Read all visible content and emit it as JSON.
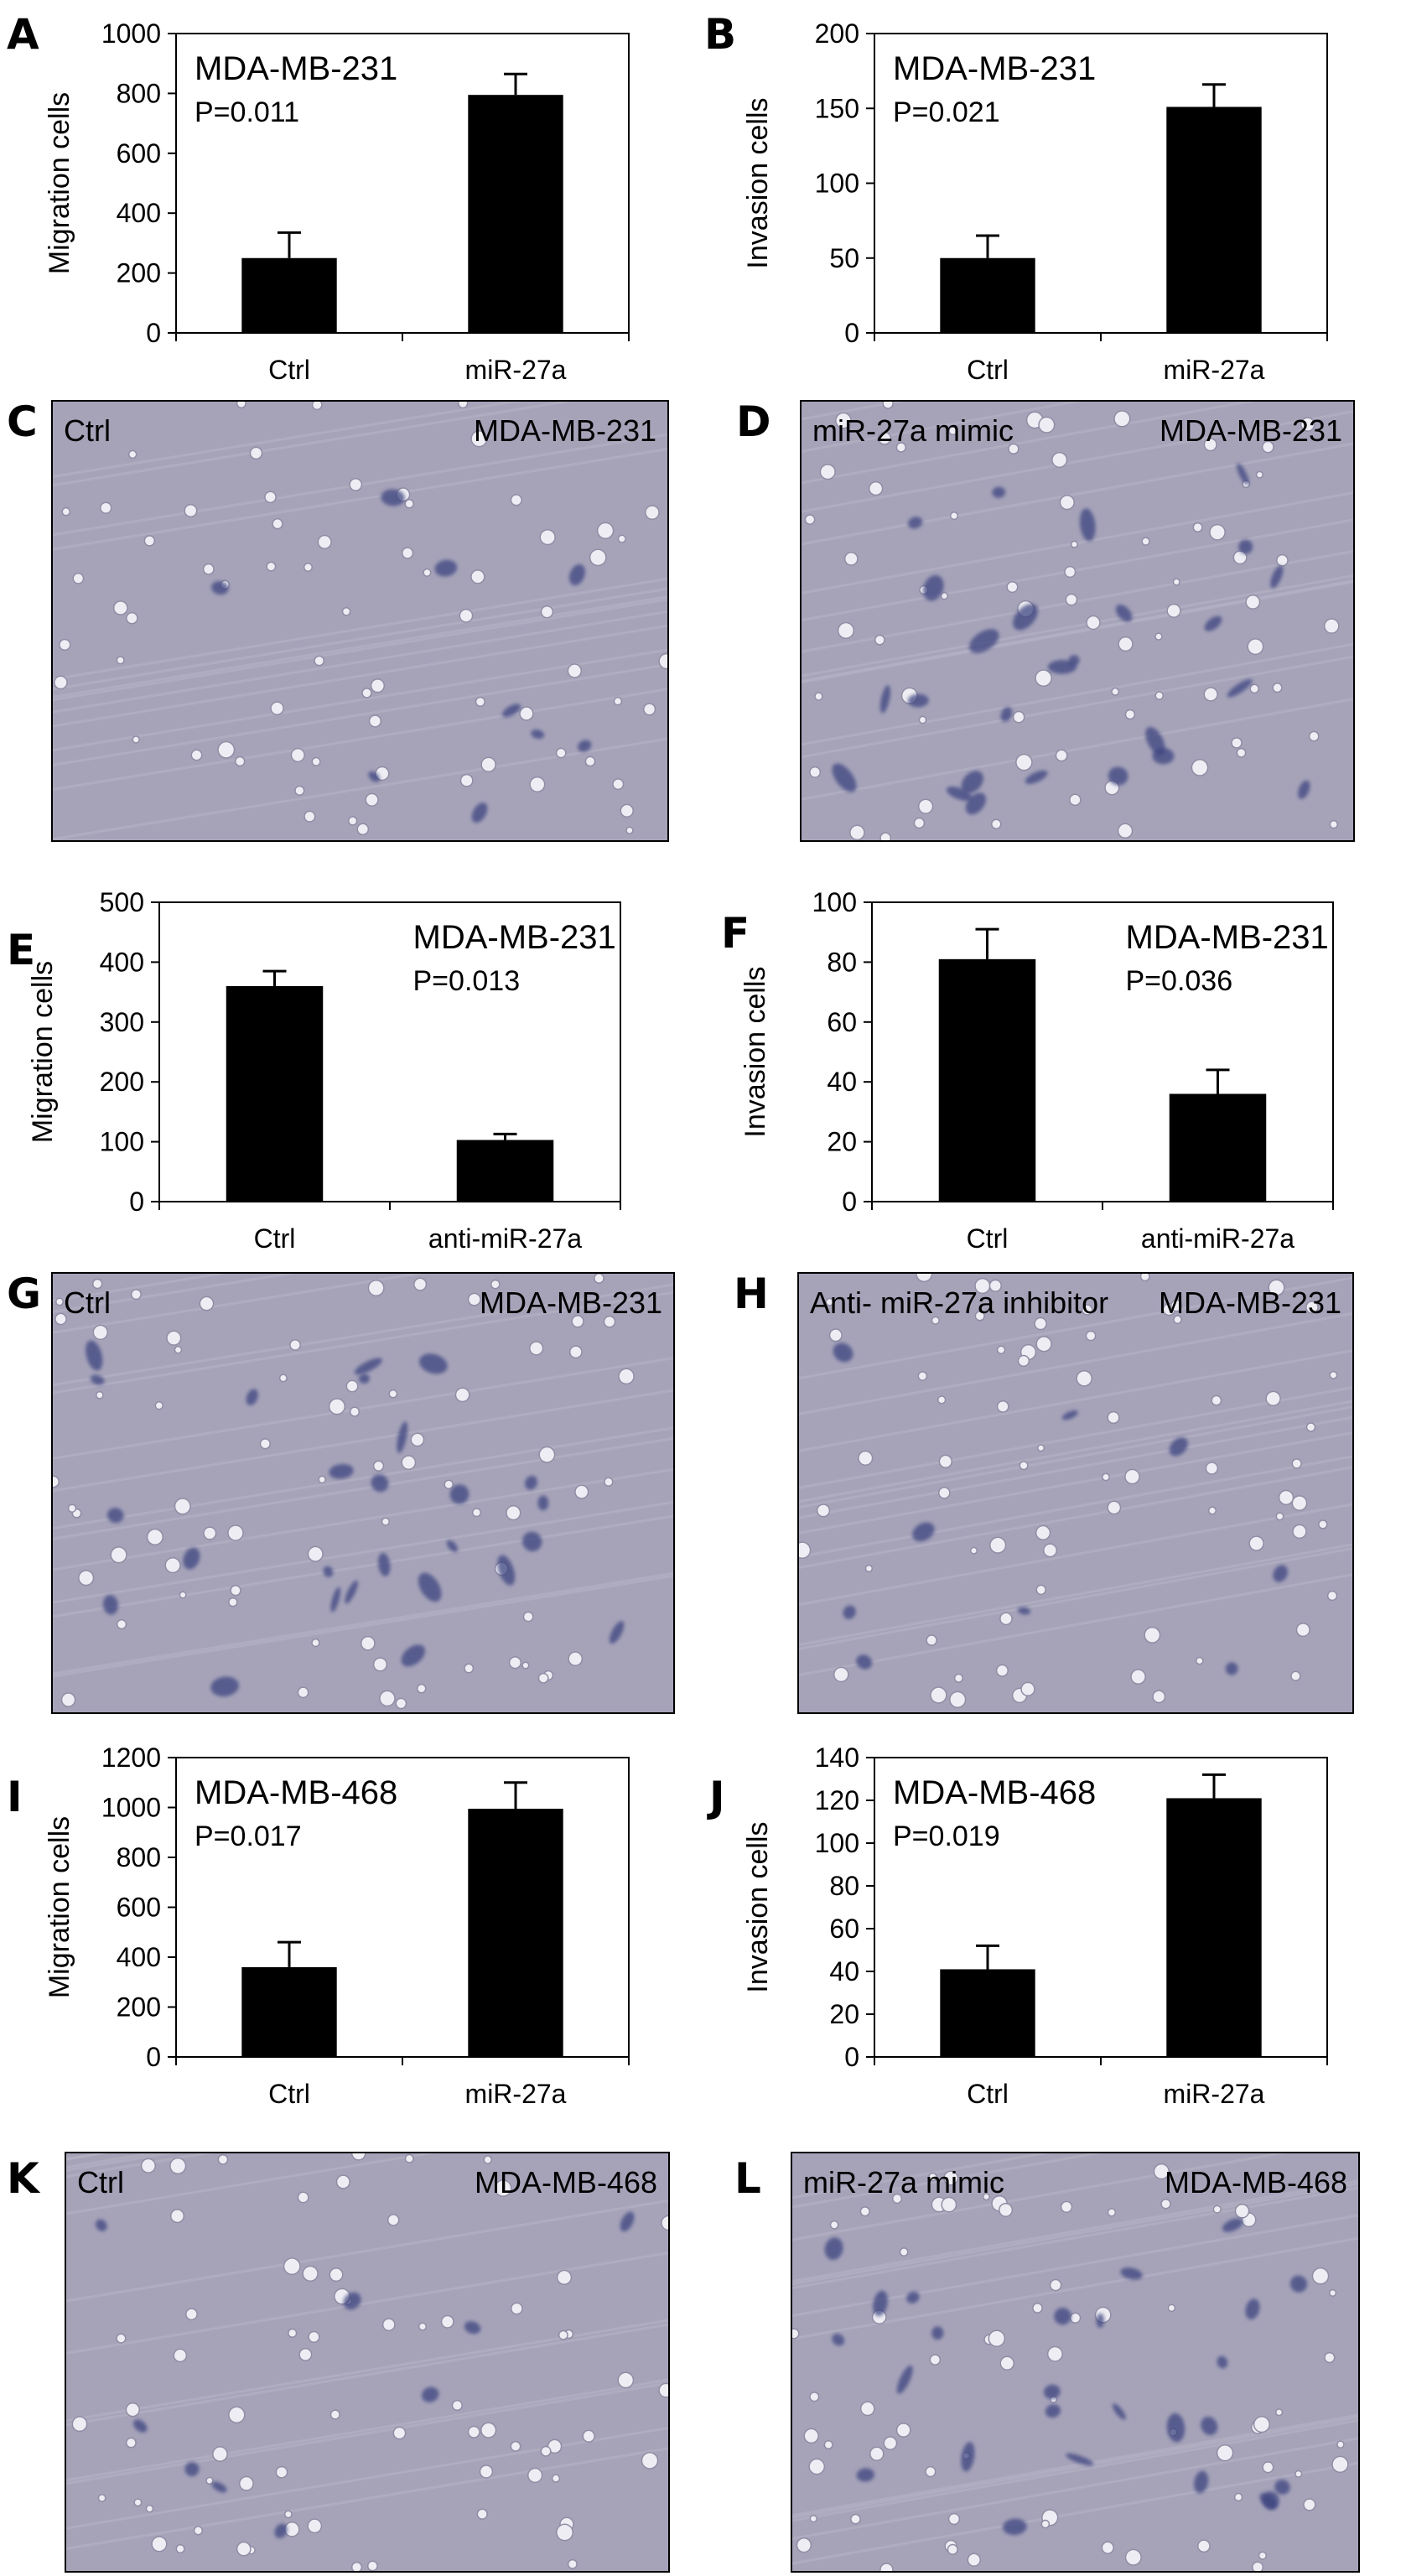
{
  "panels": {
    "A": "A",
    "B": "B",
    "C": "C",
    "D": "D",
    "E": "E",
    "F": "F",
    "G": "G",
    "H": "H",
    "I": "I",
    "J": "J",
    "K": "K",
    "L": "L"
  },
  "chart_data": [
    {
      "panel": "A",
      "type": "bar",
      "categories": [
        "Ctrl",
        "miR-27a"
      ],
      "values": [
        250,
        795
      ],
      "errors": [
        85,
        70
      ],
      "ylabel": "Migration  cells",
      "ylim": [
        0,
        1000
      ],
      "yticks": [
        "0",
        "200",
        "400",
        "600",
        "800",
        "1000"
      ],
      "annotation": [
        "MDA-MB-231",
        "P=0.011"
      ],
      "annotation_position": "top-left"
    },
    {
      "panel": "B",
      "type": "bar",
      "categories": [
        "Ctrl",
        "miR-27a"
      ],
      "values": [
        50,
        151
      ],
      "errors": [
        15,
        15
      ],
      "ylabel": "Invasion cells",
      "ylim": [
        0,
        200
      ],
      "yticks": [
        "0",
        "50",
        "100",
        "150",
        "200"
      ],
      "annotation": [
        "MDA-MB-231",
        "P=0.021"
      ],
      "annotation_position": "top-left"
    },
    {
      "panel": "E",
      "type": "bar",
      "categories": [
        "Ctrl",
        "anti-miR-27a"
      ],
      "values": [
        360,
        103
      ],
      "errors": [
        25,
        10
      ],
      "ylabel": "Migration  cells",
      "ylim": [
        0,
        500
      ],
      "yticks": [
        "0",
        "100",
        "200",
        "300",
        "400",
        "500"
      ],
      "annotation": [
        "MDA-MB-231",
        "P=0.013"
      ],
      "annotation_position": "top-right"
    },
    {
      "panel": "F",
      "type": "bar",
      "categories": [
        "Ctrl",
        "anti-miR-27a"
      ],
      "values": [
        81,
        36
      ],
      "errors": [
        10,
        8
      ],
      "ylabel": "Invasion cells",
      "ylim": [
        0,
        100
      ],
      "yticks": [
        "0",
        "20",
        "40",
        "60",
        "80",
        "100"
      ],
      "annotation": [
        "MDA-MB-231",
        "P=0.036"
      ],
      "annotation_position": "top-right"
    },
    {
      "panel": "I",
      "type": "bar",
      "categories": [
        "Ctrl",
        "miR-27a"
      ],
      "values": [
        360,
        995
      ],
      "errors": [
        100,
        105
      ],
      "ylabel": "Migration  cells",
      "ylim": [
        0,
        1200
      ],
      "yticks": [
        "0",
        "200",
        "400",
        "600",
        "800",
        "1000",
        "1200"
      ],
      "annotation": [
        "MDA-MB-468",
        "P=0.017"
      ],
      "annotation_position": "top-left"
    },
    {
      "panel": "J",
      "type": "bar",
      "categories": [
        "Ctrl",
        "miR-27a"
      ],
      "values": [
        41,
        121
      ],
      "errors": [
        11,
        11
      ],
      "ylabel": "Invasion cells",
      "ylim": [
        0,
        140
      ],
      "yticks": [
        "0",
        "20",
        "40",
        "60",
        "80",
        "100",
        "120",
        "140"
      ],
      "annotation": [
        "MDA-MB-468",
        "P=0.019"
      ],
      "annotation_position": "top-left"
    }
  ],
  "micrographs": [
    {
      "panel": "C",
      "label_left": "Ctrl",
      "label_right": "MDA-MB-231",
      "stain_level": "low"
    },
    {
      "panel": "D",
      "label_left": "miR-27a mimic",
      "label_right": "MDA-MB-231",
      "stain_level": "high"
    },
    {
      "panel": "G",
      "label_left": "Ctrl",
      "label_right": "MDA-MB-231",
      "stain_level": "high"
    },
    {
      "panel": "H",
      "label_left": "Anti- miR-27a inhibitor",
      "label_right": "MDA-MB-231",
      "stain_level": "low"
    },
    {
      "panel": "K",
      "label_left": "Ctrl",
      "label_right": "MDA-MB-468",
      "stain_level": "low"
    },
    {
      "panel": "L",
      "label_left": "miR-27a mimic",
      "label_right": "MDA-MB-468",
      "stain_level": "high"
    }
  ],
  "colors": {
    "bar": "#000000",
    "micrograph_bg": "#a6a3b9",
    "stain": "#3d4580"
  }
}
